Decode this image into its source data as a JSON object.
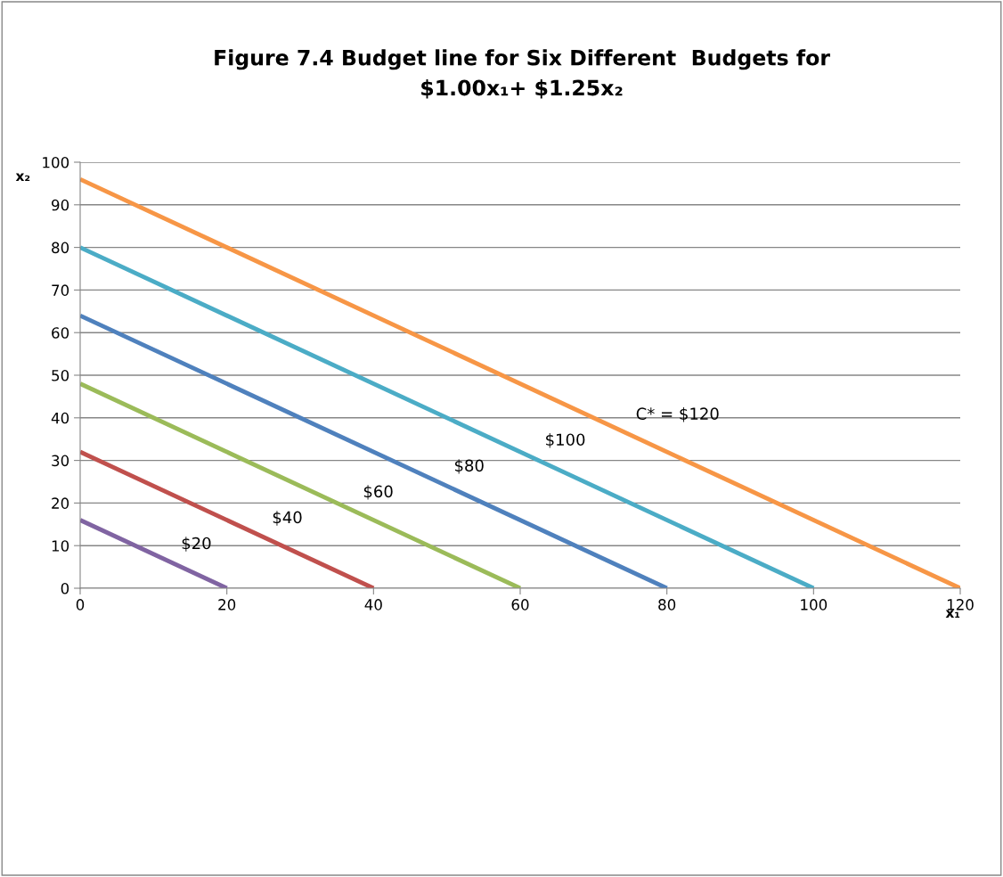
{
  "chart_data": {
    "type": "line",
    "title": "Figure 7.4 Budget line for Six Different  Budgets for\n$1.00x₁+ $1.25x₂",
    "xlabel": "x₁",
    "ylabel": "x₂",
    "xlim": [
      0,
      120
    ],
    "ylim": [
      0,
      100
    ],
    "xticks": [
      0,
      20,
      40,
      60,
      80,
      100,
      120
    ],
    "yticks": [
      0,
      10,
      20,
      30,
      40,
      50,
      60,
      70,
      80,
      90,
      100
    ],
    "grid": "y",
    "marker": "none",
    "line_style": "solid",
    "series": [
      {
        "name": "$20",
        "color": "#8064a2",
        "x": [
          0,
          20
        ],
        "values": [
          16,
          0
        ]
      },
      {
        "name": "$40",
        "color": "#c0504d",
        "x": [
          0,
          40
        ],
        "values": [
          32,
          0
        ]
      },
      {
        "name": "$60",
        "color": "#9bbb59",
        "x": [
          0,
          60
        ],
        "values": [
          48,
          0
        ]
      },
      {
        "name": "$80",
        "color": "#4f81bd",
        "x": [
          0,
          80
        ],
        "values": [
          64,
          0
        ]
      },
      {
        "name": "$100",
        "color": "#4bacc6",
        "x": [
          0,
          100
        ],
        "values": [
          80,
          0
        ]
      },
      {
        "name": "C* = $120",
        "color": "#f79646",
        "x": [
          0,
          120
        ],
        "values": [
          96,
          0
        ]
      }
    ]
  }
}
